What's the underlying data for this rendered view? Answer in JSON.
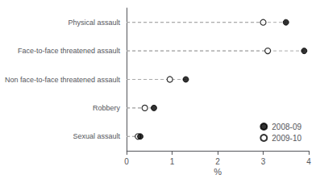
{
  "chart_data": {
    "type": "dot",
    "categories": [
      "Sexual assault",
      "Robbery",
      "Non face-to-face threatened assault",
      "Face-to-face threatened assault",
      "Physical assault"
    ],
    "series": [
      {
        "name": "2008-09",
        "color": "#000000",
        "marker": "circle",
        "values": [
          0.3,
          0.6,
          1.3,
          3.9,
          3.5
        ]
      },
      {
        "name": "2009-10",
        "color": "#000000",
        "marker": "open circle",
        "values": [
          0.25,
          0.4,
          0.95,
          3.1,
          3.0
        ]
      }
    ],
    "xlabel": "%",
    "xlim": [
      0,
      4
    ],
    "xticks": [
      0,
      1,
      2,
      3,
      4
    ],
    "line_style": "dashed",
    "grid": false,
    "legend": "lower right"
  }
}
